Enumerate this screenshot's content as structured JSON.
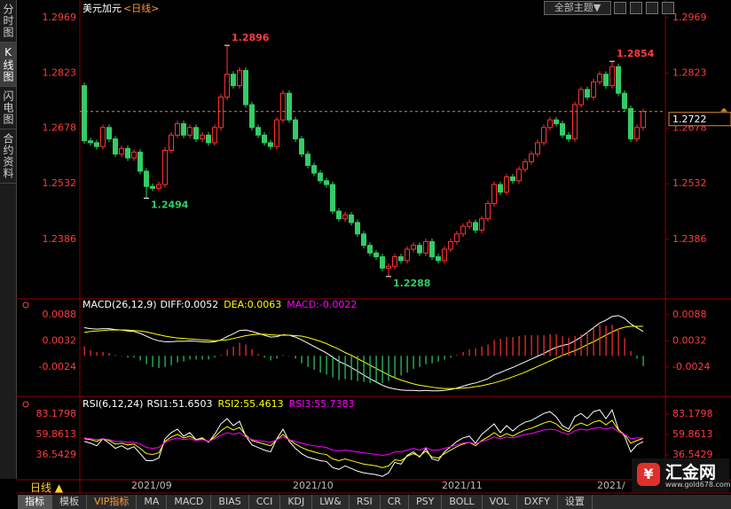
{
  "chart_data": [
    {
      "type": "candlestick",
      "title": "美元加元",
      "subtitle": "<日线>",
      "up_color": "#ff3232",
      "down_color": "#33cc66",
      "ylim": [
        1.2234,
        1.2992
      ],
      "yticks": [
        1.2969,
        1.2823,
        1.2678,
        1.2532,
        1.2386
      ],
      "last_price": 1.2722,
      "extreme_labels": [
        1.2896,
        1.2494,
        1.2288,
        1.2854
      ],
      "categories": [
        null,
        null,
        null,
        null,
        null,
        null,
        null,
        null,
        "2021/09",
        null,
        null,
        null,
        null,
        null,
        null,
        null,
        null,
        null,
        null,
        null,
        null,
        null,
        null,
        null,
        null,
        null,
        null,
        null,
        null,
        null,
        null,
        null,
        null,
        null,
        "2021/10",
        null,
        null,
        null,
        null,
        null,
        null,
        null,
        null,
        null,
        null,
        null,
        null,
        null,
        null,
        null,
        null,
        null,
        null,
        null,
        null,
        null,
        null,
        null,
        "2021/11",
        null,
        null,
        null,
        null,
        null,
        null,
        null,
        null,
        null,
        null,
        null,
        null,
        null,
        null,
        null,
        null,
        null,
        null,
        null,
        null,
        null,
        null,
        null,
        null,
        "2021/",
        null,
        null,
        null,
        null,
        null,
        null,
        null
      ],
      "open": [
        1.279,
        1.2645,
        1.264,
        1.263,
        1.268,
        1.265,
        1.261,
        1.2625,
        1.26,
        1.2615,
        1.2565,
        1.2525,
        1.252,
        1.253,
        1.262,
        1.266,
        1.269,
        1.266,
        1.268,
        1.265,
        1.266,
        1.264,
        1.268,
        1.276,
        1.282,
        1.279,
        1.283,
        1.274,
        1.268,
        1.266,
        1.264,
        1.263,
        1.27,
        1.277,
        1.27,
        1.265,
        1.261,
        1.258,
        1.256,
        1.254,
        1.253,
        1.246,
        1.244,
        1.245,
        1.243,
        1.24,
        1.237,
        1.235,
        1.234,
        1.231,
        1.2315,
        1.234,
        1.233,
        1.236,
        1.237,
        1.235,
        1.238,
        1.234,
        1.233,
        1.236,
        1.238,
        1.24,
        1.242,
        1.243,
        1.241,
        1.244,
        1.248,
        1.253,
        1.251,
        1.255,
        1.254,
        1.257,
        1.259,
        1.261,
        1.264,
        1.268,
        1.27,
        1.269,
        1.266,
        1.265,
        1.274,
        1.278,
        1.276,
        1.28,
        1.282,
        1.279,
        1.284,
        1.277,
        1.273,
        1.265,
        1.268
      ],
      "high": [
        1.2798,
        1.2653,
        1.2648,
        1.2688,
        1.2688,
        1.2658,
        1.2633,
        1.2633,
        1.2623,
        1.2623,
        1.2573,
        1.2533,
        1.2538,
        1.2628,
        1.2668,
        1.2698,
        1.2698,
        1.2688,
        1.2688,
        1.2668,
        1.2668,
        1.2688,
        1.2768,
        1.2896,
        1.2828,
        1.2838,
        1.2838,
        1.2748,
        1.2688,
        1.2668,
        1.2648,
        1.2708,
        1.2778,
        1.2778,
        1.2708,
        1.2658,
        1.2618,
        1.2588,
        1.2568,
        1.2548,
        1.2538,
        1.2468,
        1.2458,
        1.2458,
        1.2438,
        1.2408,
        1.2378,
        1.2358,
        1.2348,
        1.2323,
        1.2348,
        1.2348,
        1.2368,
        1.2378,
        1.2378,
        1.2388,
        1.2388,
        1.2348,
        1.2368,
        1.2388,
        1.2408,
        1.2428,
        1.2438,
        1.2438,
        1.2448,
        1.2488,
        1.2538,
        1.2538,
        1.2558,
        1.2558,
        1.2578,
        1.2598,
        1.2618,
        1.2648,
        1.2688,
        1.2708,
        1.2708,
        1.2698,
        1.2668,
        1.2748,
        1.2788,
        1.2788,
        1.2808,
        1.2828,
        1.2828,
        1.2854,
        1.2848,
        1.2778,
        1.2738,
        1.2688,
        1.273
      ],
      "low": [
        1.2637,
        1.2632,
        1.2622,
        1.2622,
        1.2642,
        1.2602,
        1.2602,
        1.2592,
        1.2592,
        1.2557,
        1.2494,
        1.2512,
        1.2512,
        1.2522,
        1.2612,
        1.2652,
        1.2652,
        1.2652,
        1.2642,
        1.2642,
        1.2632,
        1.2632,
        1.2672,
        1.2752,
        1.2782,
        1.2782,
        1.2732,
        1.2672,
        1.2652,
        1.2632,
        1.2622,
        1.2622,
        1.2692,
        1.2692,
        1.2642,
        1.2602,
        1.2572,
        1.2552,
        1.2532,
        1.2522,
        1.2452,
        1.2432,
        1.2432,
        1.2422,
        1.2392,
        1.2362,
        1.2342,
        1.2332,
        1.2302,
        1.2288,
        1.2307,
        1.2322,
        1.2322,
        1.2352,
        1.2342,
        1.2342,
        1.2332,
        1.2322,
        1.2322,
        1.2352,
        1.2372,
        1.2392,
        1.2412,
        1.2402,
        1.2402,
        1.2432,
        1.2472,
        1.2502,
        1.2502,
        1.2532,
        1.2532,
        1.2562,
        1.2582,
        1.2602,
        1.2632,
        1.2672,
        1.2682,
        1.2652,
        1.2642,
        1.2642,
        1.2732,
        1.2752,
        1.2752,
        1.2792,
        1.2782,
        1.2782,
        1.2762,
        1.2722,
        1.2642,
        1.2642,
        1.2672
      ],
      "close": [
        1.2645,
        1.264,
        1.263,
        1.268,
        1.265,
        1.261,
        1.2625,
        1.26,
        1.2615,
        1.2565,
        1.2525,
        1.252,
        1.253,
        1.262,
        1.266,
        1.269,
        1.266,
        1.268,
        1.265,
        1.266,
        1.264,
        1.268,
        1.276,
        1.282,
        1.279,
        1.283,
        1.274,
        1.268,
        1.266,
        1.264,
        1.263,
        1.27,
        1.277,
        1.27,
        1.265,
        1.261,
        1.258,
        1.256,
        1.254,
        1.253,
        1.246,
        1.244,
        1.245,
        1.243,
        1.24,
        1.237,
        1.235,
        1.234,
        1.231,
        1.2315,
        1.234,
        1.233,
        1.236,
        1.237,
        1.235,
        1.238,
        1.234,
        1.233,
        1.236,
        1.238,
        1.24,
        1.242,
        1.243,
        1.241,
        1.244,
        1.248,
        1.253,
        1.251,
        1.255,
        1.254,
        1.257,
        1.259,
        1.261,
        1.264,
        1.268,
        1.27,
        1.269,
        1.266,
        1.265,
        1.274,
        1.278,
        1.276,
        1.28,
        1.282,
        1.279,
        1.284,
        1.277,
        1.273,
        1.265,
        1.268,
        1.2722
      ]
    },
    {
      "type": "macd",
      "title": "MACD(26,12,9)",
      "ylim": [
        -0.0083,
        0.0116
      ],
      "yticks": [
        0.0088,
        0.0032,
        -0.0024
      ],
      "series": [
        {
          "name": "DIFF:0.0052",
          "color": "#ffffff",
          "values": [
            0.006,
            0.0058,
            0.0057,
            0.0058,
            0.0058,
            0.0056,
            0.0055,
            0.0053,
            0.0052,
            0.0048,
            0.0042,
            0.0036,
            0.0032,
            0.003,
            0.003,
            0.0031,
            0.0031,
            0.0032,
            0.0031,
            0.003,
            0.0029,
            0.003,
            0.0034,
            0.0041,
            0.0047,
            0.0054,
            0.0055,
            0.0052,
            0.0048,
            0.0044,
            0.004,
            0.0041,
            0.0045,
            0.0044,
            0.004,
            0.0034,
            0.0027,
            0.002,
            0.0013,
            0.0006,
            -0.0003,
            -0.0012,
            -0.0018,
            -0.0025,
            -0.0033,
            -0.0041,
            -0.0049,
            -0.0056,
            -0.0063,
            -0.0068,
            -0.0071,
            -0.0073,
            -0.0074,
            -0.0074,
            -0.0075,
            -0.0074,
            -0.0075,
            -0.0075,
            -0.0074,
            -0.0072,
            -0.0069,
            -0.0065,
            -0.0061,
            -0.0058,
            -0.0054,
            -0.0049,
            -0.0041,
            -0.0036,
            -0.003,
            -0.0025,
            -0.0019,
            -0.0013,
            -0.0007,
            -0.0001,
            0.0005,
            0.0012,
            0.0018,
            0.0022,
            0.0025,
            0.0032,
            0.004,
            0.005,
            0.006,
            0.007,
            0.0076,
            0.0084,
            0.0086,
            0.008,
            0.0068,
            0.006,
            0.0052
          ]
        },
        {
          "name": "DEA:0.0063",
          "color": "#ffff00",
          "values": [
            0.005,
            0.0052,
            0.0053,
            0.0054,
            0.0055,
            0.0055,
            0.0055,
            0.0055,
            0.0054,
            0.0053,
            0.0051,
            0.0048,
            0.0045,
            0.0042,
            0.004,
            0.0038,
            0.0037,
            0.0036,
            0.0035,
            0.0034,
            0.0033,
            0.0032,
            0.0033,
            0.0034,
            0.0037,
            0.004,
            0.0043,
            0.0045,
            0.0046,
            0.0046,
            0.0045,
            0.0044,
            0.0044,
            0.0044,
            0.0043,
            0.0042,
            0.0039,
            0.0035,
            0.0031,
            0.0026,
            0.002,
            0.0014,
            0.0007,
            0.0001,
            -0.0006,
            -0.0013,
            -0.002,
            -0.0027,
            -0.0034,
            -0.0041,
            -0.0047,
            -0.0052,
            -0.0056,
            -0.006,
            -0.0063,
            -0.0065,
            -0.0067,
            -0.0069,
            -0.007,
            -0.007,
            -0.007,
            -0.0069,
            -0.0068,
            -0.0066,
            -0.0064,
            -0.0061,
            -0.0058,
            -0.0054,
            -0.005,
            -0.0045,
            -0.004,
            -0.0035,
            -0.0029,
            -0.0023,
            -0.0017,
            -0.0011,
            -0.0005,
            0.0001,
            0.0006,
            0.0011,
            0.0017,
            0.0024,
            0.003,
            0.0037,
            0.0044,
            0.0051,
            0.0057,
            0.0061,
            0.0063,
            0.0063,
            0.0063
          ]
        },
        {
          "name": "MACD:-0.0022",
          "color": "#ff00ff",
          "bar": true,
          "up_color": "#ff3232",
          "down_color": "#33cc66",
          "values": [
            0.002,
            0.0012,
            0.0008,
            0.0008,
            0.0006,
            0.0002,
            0,
            -0.0004,
            -0.0004,
            -0.001,
            -0.0018,
            -0.0024,
            -0.0026,
            -0.0024,
            -0.002,
            -0.0014,
            -0.0012,
            -0.0008,
            -0.0008,
            -0.0008,
            -0.0008,
            -0.0004,
            0.0002,
            0.0014,
            0.002,
            0.0028,
            0.0024,
            0.0014,
            0.0004,
            -0.0004,
            -0.001,
            -0.0006,
            0.0002,
            0,
            -0.0006,
            -0.0016,
            -0.0024,
            -0.003,
            -0.0036,
            -0.004,
            -0.0046,
            -0.0052,
            -0.005,
            -0.0052,
            -0.0054,
            -0.0056,
            -0.0058,
            -0.0058,
            -0.0058,
            -0.0054,
            -0.0048,
            -0.0042,
            -0.0036,
            -0.0028,
            -0.0024,
            -0.0018,
            -0.0016,
            -0.0012,
            -0.0008,
            -0.0004,
            0.0002,
            0.0008,
            0.0014,
            0.0016,
            0.002,
            0.0024,
            0.0034,
            0.0036,
            0.004,
            0.004,
            0.0042,
            0.0044,
            0.0044,
            0.0044,
            0.0044,
            0.0046,
            0.0046,
            0.0042,
            0.0038,
            0.0042,
            0.0046,
            0.0052,
            0.006,
            0.0066,
            0.0064,
            0.0066,
            0.0058,
            0.0038,
            0.001,
            -0.0006,
            -0.0022
          ]
        }
      ]
    },
    {
      "type": "line",
      "title": "RSI(6,12,24)",
      "ylim": [
        9.17,
        98.39
      ],
      "yticks": [
        83.1798,
        59.8613,
        36.5429
      ],
      "series": [
        {
          "name": "RSI1:51.6503",
          "color": "#ffffff",
          "values": [
            52,
            50,
            47,
            55,
            50,
            44,
            47,
            43,
            46,
            38,
            30,
            30,
            33,
            55,
            62,
            66,
            58,
            62,
            54,
            56,
            51,
            60,
            72,
            78,
            70,
            75,
            58,
            48,
            45,
            42,
            40,
            55,
            66,
            52,
            44,
            38,
            34,
            32,
            30,
            29,
            22,
            20,
            24,
            21,
            18,
            16,
            15,
            14,
            12,
            16,
            28,
            26,
            36,
            40,
            34,
            44,
            32,
            30,
            40,
            46,
            52,
            56,
            58,
            50,
            60,
            66,
            72,
            62,
            70,
            64,
            70,
            74,
            76,
            80,
            84,
            86,
            80,
            70,
            66,
            80,
            84,
            78,
            86,
            88,
            78,
            88,
            66,
            58,
            40,
            48,
            51.6503
          ]
        },
        {
          "name": "RSI2:55.4613",
          "color": "#ffff00",
          "values": [
            55,
            54,
            52,
            55,
            53,
            49,
            50,
            48,
            49,
            44,
            38,
            37,
            39,
            52,
            57,
            60,
            56,
            58,
            54,
            55,
            52,
            57,
            64,
            69,
            65,
            68,
            59,
            53,
            51,
            49,
            47,
            54,
            60,
            54,
            49,
            45,
            42,
            40,
            38,
            37,
            32,
            30,
            32,
            30,
            28,
            26,
            25,
            24,
            22,
            24,
            31,
            30,
            35,
            38,
            35,
            41,
            34,
            33,
            38,
            42,
            46,
            49,
            51,
            47,
            53,
            57,
            62,
            57,
            61,
            58,
            62,
            65,
            67,
            70,
            73,
            75,
            72,
            66,
            63,
            70,
            73,
            70,
            74,
            76,
            71,
            76,
            65,
            60,
            50,
            53,
            55.4613
          ]
        },
        {
          "name": "RSI3:55.7383",
          "color": "#ff00ff",
          "values": [
            56,
            55,
            54,
            55,
            54,
            52,
            52,
            51,
            51,
            49,
            45,
            44,
            45,
            51,
            54,
            56,
            54,
            55,
            53,
            54,
            52,
            55,
            59,
            62,
            60,
            62,
            57,
            54,
            53,
            52,
            51,
            54,
            57,
            54,
            52,
            50,
            48,
            47,
            46,
            45,
            42,
            41,
            42,
            41,
            40,
            39,
            38,
            37,
            36,
            37,
            40,
            40,
            42,
            44,
            42,
            45,
            42,
            42,
            44,
            46,
            48,
            50,
            51,
            49,
            52,
            54,
            57,
            55,
            57,
            56,
            58,
            60,
            61,
            63,
            65,
            66,
            65,
            62,
            60,
            64,
            66,
            65,
            67,
            68,
            66,
            68,
            63,
            60,
            55,
            56,
            55.7383
          ]
        }
      ]
    }
  ],
  "ui": {
    "sidebar_tabs": [
      "分时图",
      "K线图",
      "闪电图",
      "合约资料"
    ],
    "theme_button": "全部主题▼",
    "period_label": "日线 ▲",
    "bottom_tabs": [
      "指标",
      "模板",
      "VIP指标",
      "MA",
      "MACD",
      "BIAS",
      "CCI",
      "KDJ",
      "LW&",
      "RSI",
      "CR",
      "PSY",
      "BOLL",
      "VOL",
      "DXFY",
      "设置"
    ],
    "logo_name": "汇金网",
    "logo_url": "www.gold678.com"
  }
}
